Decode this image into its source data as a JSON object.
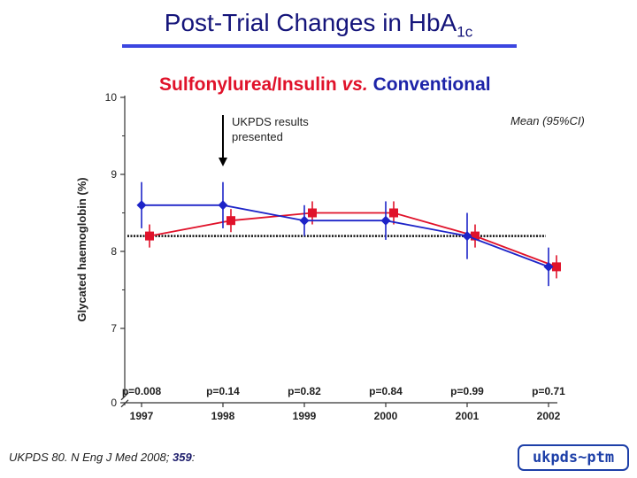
{
  "slide": {
    "title": "Post-Trial Changes in HbA",
    "title_sub": "1c",
    "subtitle_a": "Sulfonylurea/Insulin",
    "subtitle_vs": "vs.",
    "subtitle_b": "Conventional",
    "annotation": "UKPDS results\npresented",
    "ci_note": "Mean (95%CI)",
    "citation_text": "UKPDS 80. N Eng J Med 2008;",
    "citation_volume": "359",
    "citation_end": ":",
    "logo_text": "ukpds~ptm"
  },
  "chart_data": {
    "type": "line",
    "title": "",
    "xlabel": "",
    "ylabel": "Glycated haemoglobin (%)",
    "x": [
      1997,
      1998,
      1999,
      2000,
      2001,
      2002
    ],
    "x_tick_labels": [
      "1997",
      "1998",
      "1999",
      "2000",
      "2001",
      "2002"
    ],
    "y_tick_labels": [
      "10",
      "9",
      "8",
      "7",
      "0"
    ],
    "y_ticks": [
      10,
      9,
      8,
      7
    ],
    "ylim": [
      6.6,
      10
    ],
    "broken_axis": true,
    "baseline": 8.2,
    "annotation_year": 1998,
    "series": [
      {
        "name": "Sulfonylurea/Insulin",
        "color": "#e0122a",
        "marker": "square",
        "values": [
          8.2,
          8.4,
          8.5,
          8.5,
          8.2,
          7.8
        ],
        "ci_low": [
          8.05,
          8.25,
          8.35,
          8.35,
          8.05,
          7.65
        ],
        "ci_high": [
          8.35,
          8.55,
          8.65,
          8.65,
          8.35,
          7.95
        ]
      },
      {
        "name": "Conventional",
        "color": "#1d24c8",
        "marker": "diamond",
        "values": [
          8.6,
          8.6,
          8.4,
          8.4,
          8.2,
          7.8
        ],
        "ci_low": [
          8.3,
          8.3,
          8.2,
          8.15,
          7.9,
          7.55
        ],
        "ci_high": [
          8.9,
          8.9,
          8.6,
          8.65,
          8.5,
          8.05
        ]
      }
    ],
    "p_values": [
      "p=0.008",
      "p=0.14",
      "p=0.82",
      "p=0.84",
      "p=0.99",
      "p=0.71"
    ]
  }
}
